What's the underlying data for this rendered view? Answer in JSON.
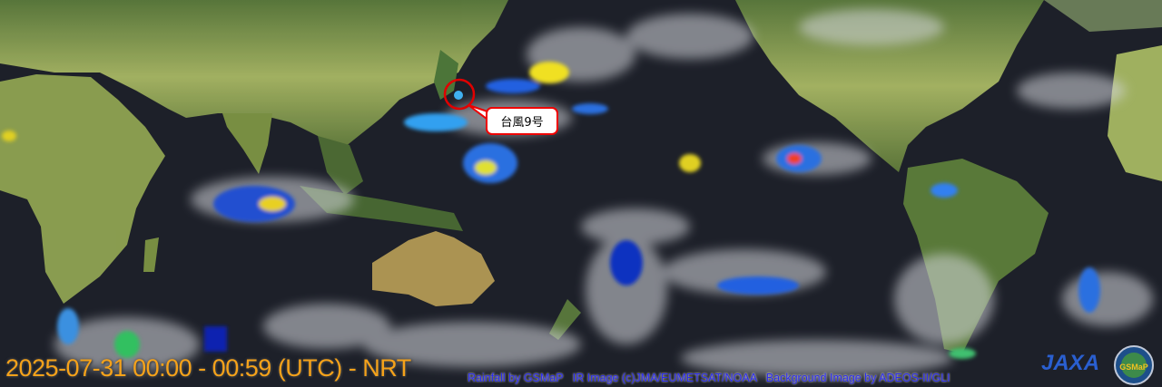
{
  "timestamp": "2025-07-31 00:00 - 00:59 (UTC) - NRT",
  "credits": "Rainfall by GSMaP   IR Image (c)JMA/EUMETSAT/NOAA   Background Image by ADEOS-II/GLI",
  "typhoon_label": "台風9号",
  "logos": {
    "jaxa": "JAXA",
    "gsmap": "GSMaP"
  },
  "colors": {
    "timestamp": "#f5a21a",
    "credits": "#2b2bf0",
    "typhoon_marker": "#e00000",
    "ocean": "#1d2029"
  }
}
